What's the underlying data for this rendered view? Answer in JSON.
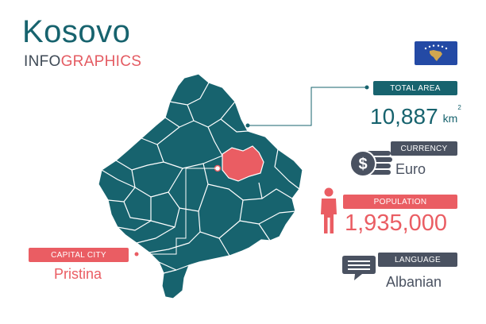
{
  "title": "Kosovo",
  "subtitle": {
    "part1": "INFO",
    "part2": "GRAPHICS"
  },
  "total_area": {
    "label": "TOTAL AREA",
    "value": "10,887",
    "unit": "km",
    "unit_exp": "2"
  },
  "currency": {
    "label": "CURRENCY",
    "value": "Euro"
  },
  "population": {
    "label": "POPULATION",
    "value": "1,935,000"
  },
  "language": {
    "label": "LANGUAGE",
    "value": "Albanian"
  },
  "capital": {
    "label": "CAPITAL CITY",
    "value": "Pristina"
  },
  "colors": {
    "teal": "#17636e",
    "red": "#ea5d63",
    "grey": "#4a5261",
    "flag_blue": "#244aa5",
    "flag_gold": "#d0a650"
  },
  "icons": [
    "flag-icon",
    "coin-stack-icon",
    "person-icon",
    "speech-bubble-icon"
  ]
}
